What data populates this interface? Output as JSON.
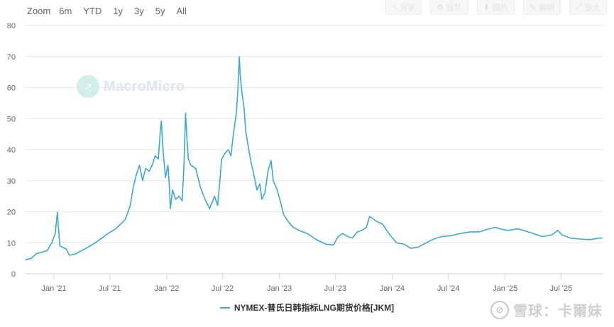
{
  "range_selector": {
    "label": "Zoom",
    "buttons": [
      "6m",
      "YTD",
      "1y",
      "3y",
      "5y",
      "All"
    ]
  },
  "toolbar": {
    "buttons": [
      {
        "icon": "share-icon",
        "label": "分享"
      },
      {
        "icon": "settings-icon",
        "label": "設計"
      },
      {
        "icon": "download-icon",
        "label": "圖片"
      },
      {
        "icon": "pencil-icon",
        "label": "編輯"
      },
      {
        "icon": "expand-icon",
        "label": "放大"
      }
    ]
  },
  "watermarks": {
    "primary": "MacroMicro",
    "secondary": "雪球：卡爾妹"
  },
  "legend": {
    "label": "NYMEX-普氏日韩指标LNG期货价格[JKM]",
    "color": "#3ba9cf"
  },
  "chart_data": {
    "type": "line",
    "x_ticks": [
      "Jan '21",
      "Jul '21",
      "Jan '22",
      "Jul '22",
      "Jan '23",
      "Jul '23",
      "Jan '24",
      "Jul '24",
      "Jan '25",
      "Jul '25"
    ],
    "y_ticks": [
      0,
      10,
      20,
      30,
      40,
      50,
      60,
      70,
      80
    ],
    "ylim": [
      0,
      80
    ],
    "xlim": [
      "2020-10-01",
      "2025-11-15"
    ],
    "grid": true,
    "legend_position": "bottom",
    "series": [
      {
        "name": "NYMEX-普氏日韩指标LNG期货价格[JKM]",
        "color": "#3ba9cf",
        "points": [
          [
            "2020-10-01",
            4.5
          ],
          [
            "2020-10-20",
            5.0
          ],
          [
            "2020-11-05",
            6.5
          ],
          [
            "2020-11-25",
            7.0
          ],
          [
            "2020-12-10",
            7.5
          ],
          [
            "2020-12-25",
            10.0
          ],
          [
            "2021-01-05",
            13.0
          ],
          [
            "2021-01-12",
            19.8
          ],
          [
            "2021-01-16",
            14.0
          ],
          [
            "2021-01-20",
            9.0
          ],
          [
            "2021-02-10",
            8.0
          ],
          [
            "2021-02-20",
            6.0
          ],
          [
            "2021-03-10",
            6.3
          ],
          [
            "2021-04-01",
            7.5
          ],
          [
            "2021-04-20",
            8.5
          ],
          [
            "2021-05-15",
            10.0
          ],
          [
            "2021-06-05",
            11.5
          ],
          [
            "2021-06-25",
            13.0
          ],
          [
            "2021-07-20",
            14.5
          ],
          [
            "2021-08-05",
            16.0
          ],
          [
            "2021-08-20",
            17.5
          ],
          [
            "2021-09-05",
            22.0
          ],
          [
            "2021-09-15",
            28.0
          ],
          [
            "2021-09-25",
            32.0
          ],
          [
            "2021-10-05",
            35.0
          ],
          [
            "2021-10-15",
            30.0
          ],
          [
            "2021-10-25",
            34.0
          ],
          [
            "2021-11-05",
            33.0
          ],
          [
            "2021-11-15",
            35.0
          ],
          [
            "2021-11-25",
            38.0
          ],
          [
            "2021-12-05",
            37.0
          ],
          [
            "2021-12-12",
            47.0
          ],
          [
            "2021-12-15",
            49.2
          ],
          [
            "2021-12-20",
            40.0
          ],
          [
            "2021-12-28",
            31.0
          ],
          [
            "2022-01-05",
            35.0
          ],
          [
            "2022-01-10",
            28.0
          ],
          [
            "2022-01-13",
            21.0
          ],
          [
            "2022-01-20",
            27.0
          ],
          [
            "2022-01-30",
            24.0
          ],
          [
            "2022-02-10",
            25.0
          ],
          [
            "2022-02-20",
            23.5
          ],
          [
            "2022-02-26",
            35.0
          ],
          [
            "2022-03-01",
            45.0
          ],
          [
            "2022-03-03",
            51.8
          ],
          [
            "2022-03-08",
            43.0
          ],
          [
            "2022-03-12",
            37.0
          ],
          [
            "2022-03-20",
            35.0
          ],
          [
            "2022-04-05",
            34.0
          ],
          [
            "2022-04-20",
            28.0
          ],
          [
            "2022-05-05",
            24.0
          ],
          [
            "2022-05-20",
            21.0
          ],
          [
            "2022-06-05",
            25.0
          ],
          [
            "2022-06-15",
            22.0
          ],
          [
            "2022-06-22",
            30.0
          ],
          [
            "2022-06-28",
            37.0
          ],
          [
            "2022-07-10",
            39.0
          ],
          [
            "2022-07-20",
            40.0
          ],
          [
            "2022-07-28",
            38.0
          ],
          [
            "2022-08-05",
            45.0
          ],
          [
            "2022-08-15",
            52.0
          ],
          [
            "2022-08-20",
            60.0
          ],
          [
            "2022-08-24",
            70.0
          ],
          [
            "2022-08-27",
            64.0
          ],
          [
            "2022-09-02",
            58.0
          ],
          [
            "2022-09-08",
            54.0
          ],
          [
            "2022-09-14",
            46.0
          ],
          [
            "2022-09-22",
            41.0
          ],
          [
            "2022-10-01",
            36.0
          ],
          [
            "2022-10-10",
            32.0
          ],
          [
            "2022-10-20",
            27.0
          ],
          [
            "2022-10-30",
            29.0
          ],
          [
            "2022-11-05",
            24.0
          ],
          [
            "2022-11-15",
            26.0
          ],
          [
            "2022-11-25",
            33.0
          ],
          [
            "2022-12-05",
            36.5
          ],
          [
            "2022-12-12",
            30.0
          ],
          [
            "2022-12-25",
            27.0
          ],
          [
            "2023-01-05",
            23.0
          ],
          [
            "2023-01-15",
            19.0
          ],
          [
            "2023-02-01",
            16.5
          ],
          [
            "2023-02-15",
            15.0
          ],
          [
            "2023-03-05",
            14.0
          ],
          [
            "2023-04-01",
            13.0
          ],
          [
            "2023-05-01",
            11.0
          ],
          [
            "2023-06-01",
            9.5
          ],
          [
            "2023-06-25",
            9.3
          ],
          [
            "2023-07-10",
            12.0
          ],
          [
            "2023-07-25",
            13.0
          ],
          [
            "2023-08-10",
            12.0
          ],
          [
            "2023-08-25",
            11.5
          ],
          [
            "2023-09-10",
            13.5
          ],
          [
            "2023-09-25",
            14.0
          ],
          [
            "2023-10-10",
            15.0
          ],
          [
            "2023-10-20",
            18.5
          ],
          [
            "2023-11-10",
            17.0
          ],
          [
            "2023-12-01",
            16.0
          ],
          [
            "2023-12-25",
            12.5
          ],
          [
            "2024-01-15",
            10.0
          ],
          [
            "2024-02-10",
            9.5
          ],
          [
            "2024-03-01",
            8.2
          ],
          [
            "2024-03-25",
            8.6
          ],
          [
            "2024-04-20",
            10.0
          ],
          [
            "2024-05-15",
            11.2
          ],
          [
            "2024-06-10",
            12.0
          ],
          [
            "2024-07-10",
            12.3
          ],
          [
            "2024-08-10",
            13.0
          ],
          [
            "2024-09-10",
            13.5
          ],
          [
            "2024-10-10",
            13.5
          ],
          [
            "2024-11-10",
            14.5
          ],
          [
            "2024-12-01",
            15.0
          ],
          [
            "2024-12-15",
            14.5
          ],
          [
            "2025-01-10",
            14.0
          ],
          [
            "2025-02-10",
            14.5
          ],
          [
            "2025-03-01",
            14.0
          ],
          [
            "2025-04-01",
            13.0
          ],
          [
            "2025-05-01",
            12.0
          ],
          [
            "2025-06-01",
            12.5
          ],
          [
            "2025-06-20",
            14.0
          ],
          [
            "2025-07-05",
            12.5
          ],
          [
            "2025-08-01",
            11.5
          ],
          [
            "2025-09-01",
            11.2
          ],
          [
            "2025-10-01",
            11.0
          ],
          [
            "2025-11-01",
            11.5
          ],
          [
            "2025-11-12",
            11.5
          ]
        ]
      }
    ]
  }
}
